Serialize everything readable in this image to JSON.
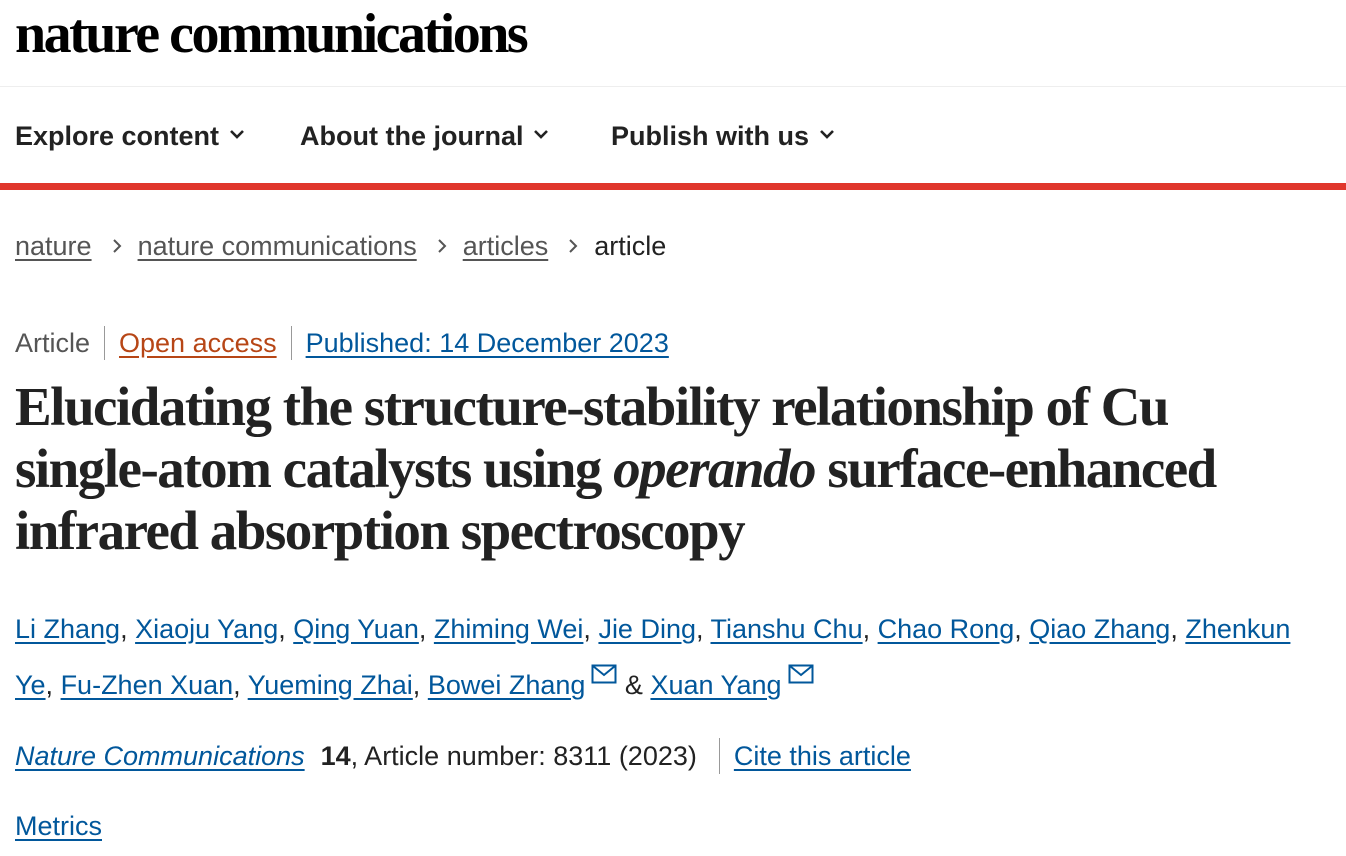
{
  "site": {
    "logo_text": "nature communications"
  },
  "nav": {
    "items": [
      {
        "label": "Explore content"
      },
      {
        "label": "About the journal"
      },
      {
        "label": "Publish with us"
      }
    ]
  },
  "breadcrumb": {
    "items": [
      "nature",
      "nature communications",
      "articles"
    ],
    "current": "article"
  },
  "article": {
    "type": "Article",
    "open_access": "Open access",
    "published": "Published: 14 December 2023",
    "title_before": "Elucidating the structure-stability relationship of Cu single-atom catalysts using ",
    "title_emphasis": "operando",
    "title_after": " surface-enhanced infrared absorption spectroscopy",
    "authors": [
      "Li Zhang",
      "Xiaoju Yang",
      "Qing Yuan",
      "Zhiming Wei",
      "Jie Ding",
      "Tianshu Chu",
      "Chao Rong",
      "Qiao Zhang",
      "Zhenkun Ye",
      "Fu-Zhen Xuan",
      "Yueming Zhai",
      "Bowei Zhang",
      "Xuan Yang"
    ],
    "author_separator": ", ",
    "author_last_separator": " & ",
    "journal_name": "Nature Communications",
    "volume": "14",
    "article_number_text": ", Article number: 8311 (2023)",
    "cite_label": "Cite this article",
    "metrics_label": "Metrics"
  },
  "colors": {
    "accent_red": "#e0362c",
    "link_blue": "#01579b",
    "open_access_orange": "#b74616"
  }
}
